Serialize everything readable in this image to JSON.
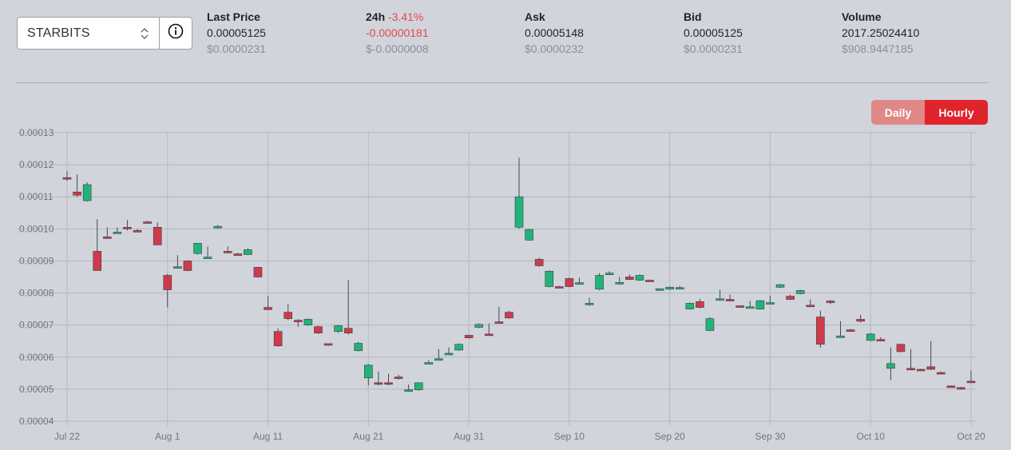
{
  "selector": {
    "value": "STARBITS",
    "arrows_icon": "chevron-up-down-icon",
    "info_icon": "info-circle-icon"
  },
  "stats": [
    {
      "label": "Last Price",
      "change": "",
      "value": "0.00005125",
      "usd": "$0.0000231",
      "value_negative": false
    },
    {
      "label": "24h",
      "change": "-3.41%",
      "value": "-0.00000181",
      "usd": "$-0.0000008",
      "value_negative": true
    },
    {
      "label": "Ask",
      "change": "",
      "value": "0.00005148",
      "usd": "$0.0000232",
      "value_negative": false
    },
    {
      "label": "Bid",
      "change": "",
      "value": "0.00005125",
      "usd": "$0.0000231",
      "value_negative": false
    },
    {
      "label": "Volume",
      "change": "",
      "value": "2017.25024410",
      "usd": "$908.9447185",
      "value_negative": false
    }
  ],
  "toggle": {
    "daily": "Daily",
    "hourly": "Hourly",
    "active": "hourly"
  },
  "colors": {
    "up": "#22b37a",
    "down": "#cf3a4b",
    "negative_text": "#e5484d",
    "hourly_active": "#e0242c",
    "daily_inactive": "#e08888"
  },
  "chart_data": {
    "type": "candlestick",
    "x_ticks": [
      "Jul 22",
      "Aug 1",
      "Aug 11",
      "Aug 21",
      "Aug 31",
      "Sep 10",
      "Sep 20",
      "Sep 30",
      "Oct 10",
      "Oct 20"
    ],
    "y_ticks": [
      "0.00004",
      "0.00005",
      "0.00006",
      "0.00007",
      "0.00008",
      "0.00009",
      "0.00010",
      "0.00011",
      "0.00012",
      "0.00013"
    ],
    "ylim": [
      4e-05,
      0.00013
    ],
    "x_range": [
      "2021-07-22",
      "2021-10-20"
    ],
    "grid": true,
    "series": [
      {
        "date": "2021-07-22",
        "open": 0.000116,
        "high": 0.000118,
        "low": 0.000115,
        "close": 0.0001155
      },
      {
        "date": "2021-07-23",
        "open": 0.0001115,
        "high": 0.000117,
        "low": 0.00011,
        "close": 0.0001105
      },
      {
        "date": "2021-07-24",
        "open": 0.0001088,
        "high": 0.0001145,
        "low": 0.0001085,
        "close": 0.0001138
      },
      {
        "date": "2021-07-25",
        "open": 9.3e-05,
        "high": 0.000103,
        "low": 8.7e-05,
        "close": 8.7e-05
      },
      {
        "date": "2021-07-26",
        "open": 9.75e-05,
        "high": 0.0001005,
        "low": 9.7e-05,
        "close": 9.72e-05
      },
      {
        "date": "2021-07-27",
        "open": 9.88e-05,
        "high": 0.0001005,
        "low": 9.85e-05,
        "close": 9.9e-05
      },
      {
        "date": "2021-07-28",
        "open": 0.0001005,
        "high": 0.0001028,
        "low": 9.95e-05,
        "close": 0.0001
      },
      {
        "date": "2021-07-29",
        "open": 9.95e-05,
        "high": 0.0001,
        "low": 9.9e-05,
        "close": 9.93e-05
      },
      {
        "date": "2021-07-30",
        "open": 0.0001022,
        "high": 0.0001025,
        "low": 0.0001018,
        "close": 0.000102
      },
      {
        "date": "2021-07-31",
        "open": 0.0001005,
        "high": 0.000102,
        "low": 9.5e-05,
        "close": 9.5e-05
      },
      {
        "date": "2021-08-01",
        "open": 8.55e-05,
        "high": 8.6e-05,
        "low": 7.55e-05,
        "close": 8.1e-05
      },
      {
        "date": "2021-08-02",
        "open": 8.8e-05,
        "high": 9.18e-05,
        "low": 8.78e-05,
        "close": 8.82e-05
      },
      {
        "date": "2021-08-03",
        "open": 9e-05,
        "high": 9.02e-05,
        "low": 8.68e-05,
        "close": 8.7e-05
      },
      {
        "date": "2021-08-04",
        "open": 9.23e-05,
        "high": 9.55e-05,
        "low": 9.2e-05,
        "close": 9.55e-05
      },
      {
        "date": "2021-08-05",
        "open": 9.1e-05,
        "high": 9.45e-05,
        "low": 9.08e-05,
        "close": 9.12e-05
      },
      {
        "date": "2021-08-06",
        "open": 0.0001005,
        "high": 0.0001012,
        "low": 0.0001,
        "close": 0.0001008
      },
      {
        "date": "2021-08-07",
        "open": 9.3e-05,
        "high": 9.45e-05,
        "low": 9.25e-05,
        "close": 9.28e-05
      },
      {
        "date": "2021-08-08",
        "open": 9.22e-05,
        "high": 9.25e-05,
        "low": 9.18e-05,
        "close": 9.2e-05
      },
      {
        "date": "2021-08-09",
        "open": 9.2e-05,
        "high": 9.4e-05,
        "low": 9.18e-05,
        "close": 9.35e-05
      },
      {
        "date": "2021-08-10",
        "open": 8.8e-05,
        "high": 8.82e-05,
        "low": 8.48e-05,
        "close": 8.5e-05
      },
      {
        "date": "2021-08-11",
        "open": 7.55e-05,
        "high": 7.9e-05,
        "low": 7.48e-05,
        "close": 7.48e-05
      },
      {
        "date": "2021-08-12",
        "open": 6.8e-05,
        "high": 6.9e-05,
        "low": 6.32e-05,
        "close": 6.35e-05
      },
      {
        "date": "2021-08-13",
        "open": 7.4e-05,
        "high": 7.65e-05,
        "low": 7.15e-05,
        "close": 7.2e-05
      },
      {
        "date": "2021-08-14",
        "open": 7.15e-05,
        "high": 7.18e-05,
        "low": 6.95e-05,
        "close": 7.12e-05
      },
      {
        "date": "2021-08-15",
        "open": 7e-05,
        "high": 7.2e-05,
        "low": 6.98e-05,
        "close": 7.18e-05
      },
      {
        "date": "2021-08-16",
        "open": 6.95e-05,
        "high": 6.98e-05,
        "low": 6.72e-05,
        "close": 6.75e-05
      },
      {
        "date": "2021-08-17",
        "open": 6.42e-05,
        "high": 6.42e-05,
        "low": 6.35e-05,
        "close": 6.38e-05
      },
      {
        "date": "2021-08-18",
        "open": 6.8e-05,
        "high": 7e-05,
        "low": 6.75e-05,
        "close": 6.98e-05
      },
      {
        "date": "2021-08-19",
        "open": 6.9e-05,
        "high": 8.4e-05,
        "low": 6.7e-05,
        "close": 6.75e-05
      },
      {
        "date": "2021-08-20",
        "open": 6.2e-05,
        "high": 6.48e-05,
        "low": 6.18e-05,
        "close": 6.43e-05
      },
      {
        "date": "2021-08-21",
        "open": 5.35e-05,
        "high": 5.78e-05,
        "low": 5.12e-05,
        "close": 5.75e-05
      },
      {
        "date": "2021-08-22",
        "open": 5.2e-05,
        "high": 5.55e-05,
        "low": 5.12e-05,
        "close": 5.15e-05
      },
      {
        "date": "2021-08-23",
        "open": 5.2e-05,
        "high": 5.48e-05,
        "low": 5.12e-05,
        "close": 5.15e-05
      },
      {
        "date": "2021-08-24",
        "open": 5.38e-05,
        "high": 5.45e-05,
        "low": 5.3e-05,
        "close": 5.35e-05
      },
      {
        "date": "2021-08-25",
        "open": 4.95e-05,
        "high": 5.15e-05,
        "low": 4.92e-05,
        "close": 4.98e-05
      },
      {
        "date": "2021-08-26",
        "open": 4.98e-05,
        "high": 5.2e-05,
        "low": 4.95e-05,
        "close": 5.2e-05
      },
      {
        "date": "2021-08-27",
        "open": 5.8e-05,
        "high": 5.9e-05,
        "low": 5.78e-05,
        "close": 5.83e-05
      },
      {
        "date": "2021-08-28",
        "open": 5.92e-05,
        "high": 6.25e-05,
        "low": 5.9e-05,
        "close": 5.95e-05
      },
      {
        "date": "2021-08-29",
        "open": 6.1e-05,
        "high": 6.3e-05,
        "low": 6.07e-05,
        "close": 6.12e-05
      },
      {
        "date": "2021-08-30",
        "open": 6.22e-05,
        "high": 6.42e-05,
        "low": 6.2e-05,
        "close": 6.4e-05
      },
      {
        "date": "2021-08-31",
        "open": 6.68e-05,
        "high": 6.7e-05,
        "low": 6.58e-05,
        "close": 6.6e-05
      },
      {
        "date": "2021-09-01",
        "open": 6.93e-05,
        "high": 7.05e-05,
        "low": 6.9e-05,
        "close": 7.02e-05
      },
      {
        "date": "2021-09-02",
        "open": 6.72e-05,
        "high": 7.05e-05,
        "low": 6.68e-05,
        "close": 6.7e-05
      },
      {
        "date": "2021-09-03",
        "open": 7.1e-05,
        "high": 7.57e-05,
        "low": 7.05e-05,
        "close": 7.08e-05
      },
      {
        "date": "2021-09-04",
        "open": 7.4e-05,
        "high": 7.45e-05,
        "low": 7.2e-05,
        "close": 7.22e-05
      },
      {
        "date": "2021-09-05",
        "open": 0.0001005,
        "high": 0.0001222,
        "low": 0.0001,
        "close": 0.00011
      },
      {
        "date": "2021-09-06",
        "open": 9.65e-05,
        "high": 0.0001,
        "low": 9.63e-05,
        "close": 9.98e-05
      },
      {
        "date": "2021-09-07",
        "open": 9.05e-05,
        "high": 9.1e-05,
        "low": 8.82e-05,
        "close": 8.85e-05
      },
      {
        "date": "2021-09-08",
        "open": 8.2e-05,
        "high": 8.7e-05,
        "low": 8.18e-05,
        "close": 8.68e-05
      },
      {
        "date": "2021-09-09",
        "open": 8.2e-05,
        "high": 8.22e-05,
        "low": 8.17e-05,
        "close": 8.19e-05
      },
      {
        "date": "2021-09-10",
        "open": 8.45e-05,
        "high": 8.48e-05,
        "low": 8.18e-05,
        "close": 8.2e-05
      },
      {
        "date": "2021-09-11",
        "open": 8.3e-05,
        "high": 8.48e-05,
        "low": 8.26e-05,
        "close": 8.32e-05
      },
      {
        "date": "2021-09-12",
        "open": 7.65e-05,
        "high": 7.85e-05,
        "low": 7.6e-05,
        "close": 7.68e-05
      },
      {
        "date": "2021-09-13",
        "open": 8.12e-05,
        "high": 8.62e-05,
        "low": 8.08e-05,
        "close": 8.55e-05
      },
      {
        "date": "2021-09-14",
        "open": 8.58e-05,
        "high": 8.68e-05,
        "low": 8.55e-05,
        "close": 8.62e-05
      },
      {
        "date": "2021-09-15",
        "open": 8.3e-05,
        "high": 8.5e-05,
        "low": 8.26e-05,
        "close": 8.33e-05
      },
      {
        "date": "2021-09-16",
        "open": 8.5e-05,
        "high": 8.58e-05,
        "low": 8.4e-05,
        "close": 8.42e-05
      },
      {
        "date": "2021-09-17",
        "open": 8.4e-05,
        "high": 8.58e-05,
        "low": 8.38e-05,
        "close": 8.55e-05
      },
      {
        "date": "2021-09-18",
        "open": 8.4e-05,
        "high": 8.42e-05,
        "low": 8.36e-05,
        "close": 8.38e-05
      },
      {
        "date": "2021-09-19",
        "open": 8.12e-05,
        "high": 8.15e-05,
        "low": 8.1e-05,
        "close": 8.13e-05
      },
      {
        "date": "2021-09-20",
        "open": 8.12e-05,
        "high": 8.2e-05,
        "low": 8.1e-05,
        "close": 8.18e-05
      },
      {
        "date": "2021-09-21",
        "open": 8.15e-05,
        "high": 8.22e-05,
        "low": 8.12e-05,
        "close": 8.17e-05
      },
      {
        "date": "2021-09-22",
        "open": 7.5e-05,
        "high": 7.7e-05,
        "low": 7.48e-05,
        "close": 7.68e-05
      },
      {
        "date": "2021-09-23",
        "open": 7.73e-05,
        "high": 7.82e-05,
        "low": 7.52e-05,
        "close": 7.55e-05
      },
      {
        "date": "2021-09-24",
        "open": 6.83e-05,
        "high": 7.25e-05,
        "low": 6.81e-05,
        "close": 7.2e-05
      },
      {
        "date": "2021-09-25",
        "open": 7.8e-05,
        "high": 8.1e-05,
        "low": 7.78e-05,
        "close": 7.82e-05
      },
      {
        "date": "2021-09-26",
        "open": 7.8e-05,
        "high": 7.95e-05,
        "low": 7.76e-05,
        "close": 7.78e-05
      },
      {
        "date": "2021-09-27",
        "open": 7.6e-05,
        "high": 7.62e-05,
        "low": 7.56e-05,
        "close": 7.58e-05
      },
      {
        "date": "2021-09-28",
        "open": 7.55e-05,
        "high": 7.75e-05,
        "low": 7.52e-05,
        "close": 7.57e-05
      },
      {
        "date": "2021-09-29",
        "open": 7.5e-05,
        "high": 7.78e-05,
        "low": 7.48e-05,
        "close": 7.76e-05
      },
      {
        "date": "2021-09-30",
        "open": 7.68e-05,
        "high": 7.92e-05,
        "low": 7.65e-05,
        "close": 7.7e-05
      },
      {
        "date": "2021-10-01",
        "open": 8.18e-05,
        "high": 8.28e-05,
        "low": 8.15e-05,
        "close": 8.26e-05
      },
      {
        "date": "2021-10-02",
        "open": 7.9e-05,
        "high": 7.95e-05,
        "low": 7.78e-05,
        "close": 7.8e-05
      },
      {
        "date": "2021-10-03",
        "open": 7.98e-05,
        "high": 8.1e-05,
        "low": 7.96e-05,
        "close": 8.08e-05
      },
      {
        "date": "2021-10-04",
        "open": 7.62e-05,
        "high": 7.8e-05,
        "low": 7.58e-05,
        "close": 7.6e-05
      },
      {
        "date": "2021-10-05",
        "open": 7.25e-05,
        "high": 7.45e-05,
        "low": 6.3e-05,
        "close": 6.4e-05
      },
      {
        "date": "2021-10-06",
        "open": 7.75e-05,
        "high": 7.78e-05,
        "low": 7.65e-05,
        "close": 7.72e-05
      },
      {
        "date": "2021-10-07",
        "open": 6.65e-05,
        "high": 7.12e-05,
        "low": 6.62e-05,
        "close": 6.66e-05
      },
      {
        "date": "2021-10-08",
        "open": 6.85e-05,
        "high": 6.88e-05,
        "low": 6.82e-05,
        "close": 6.84e-05
      },
      {
        "date": "2021-10-09",
        "open": 7.18e-05,
        "high": 7.32e-05,
        "low": 7.08e-05,
        "close": 7.12e-05
      },
      {
        "date": "2021-10-10",
        "open": 6.52e-05,
        "high": 6.75e-05,
        "low": 6.5e-05,
        "close": 6.72e-05
      },
      {
        "date": "2021-10-11",
        "open": 6.55e-05,
        "high": 6.62e-05,
        "low": 6.5e-05,
        "close": 6.52e-05
      },
      {
        "date": "2021-10-12",
        "open": 5.65e-05,
        "high": 6.3e-05,
        "low": 5.28e-05,
        "close": 5.8e-05
      },
      {
        "date": "2021-10-13",
        "open": 6.4e-05,
        "high": 6.42e-05,
        "low": 6.15e-05,
        "close": 6.17e-05
      },
      {
        "date": "2021-10-14",
        "open": 5.65e-05,
        "high": 6.25e-05,
        "low": 5.62e-05,
        "close": 5.63e-05
      },
      {
        "date": "2021-10-15",
        "open": 5.62e-05,
        "high": 5.64e-05,
        "low": 5.58e-05,
        "close": 5.6e-05
      },
      {
        "date": "2021-10-16",
        "open": 5.7e-05,
        "high": 6.5e-05,
        "low": 5.6e-05,
        "close": 5.62e-05
      },
      {
        "date": "2021-10-17",
        "open": 5.52e-05,
        "high": 5.55e-05,
        "low": 5.48e-05,
        "close": 5.5e-05
      },
      {
        "date": "2021-10-18",
        "open": 5.1e-05,
        "high": 5.12e-05,
        "low": 5.06e-05,
        "close": 5.08e-05
      },
      {
        "date": "2021-10-19",
        "open": 5.05e-05,
        "high": 5.07e-05,
        "low": 4.98e-05,
        "close": 5e-05
      },
      {
        "date": "2021-10-20",
        "open": 5.25e-05,
        "high": 5.58e-05,
        "low": 5.2e-05,
        "close": 5.24e-05
      }
    ]
  }
}
